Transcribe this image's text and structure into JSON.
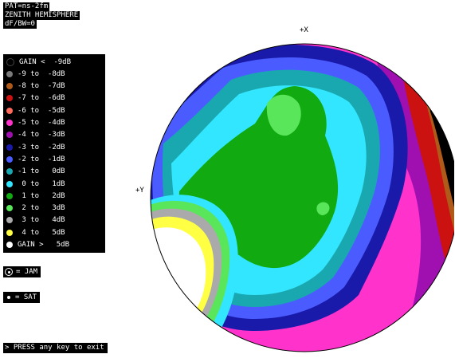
{
  "header": {
    "line1": "PAT=ns-2fm",
    "line2": "ZENITH HEMISPHERE",
    "line3": "dF/BW=0"
  },
  "legend": [
    {
      "label": "GAIN <  -9dB",
      "color": "#000000"
    },
    {
      "label": "-9 to  -8dB",
      "color": "#7a7a7a"
    },
    {
      "label": "-8 to  -7dB",
      "color": "#b05a1a"
    },
    {
      "label": "-7 to  -6dB",
      "color": "#cc1111"
    },
    {
      "label": "-6 to  -5dB",
      "color": "#ff6a5a"
    },
    {
      "label": "-5 to  -4dB",
      "color": "#ff33cc"
    },
    {
      "label": "-4 to  -3dB",
      "color": "#a010b0"
    },
    {
      "label": "-3 to  -2dB",
      "color": "#1a1aaa"
    },
    {
      "label": "-2 to  -1dB",
      "color": "#4a5cff"
    },
    {
      "label": "-1 to   0dB",
      "color": "#1aa8b0"
    },
    {
      "label": " 0 to   1dB",
      "color": "#33e6ff"
    },
    {
      "label": " 1 to   2dB",
      "color": "#11aa11"
    },
    {
      "label": " 2 to   3dB",
      "color": "#5ae65a"
    },
    {
      "label": " 3 to   4dB",
      "color": "#aaaaaa"
    },
    {
      "label": " 4 to   5dB",
      "color": "#ffff44"
    },
    {
      "label": "GAIN >   5dB",
      "color": "#ffffff"
    }
  ],
  "keys": {
    "jam": "= JAM",
    "sat": "= SAT"
  },
  "axes": {
    "top": "+X",
    "left": "+Y"
  },
  "footer": {
    "exit": "> PRESS any key to exit"
  }
}
